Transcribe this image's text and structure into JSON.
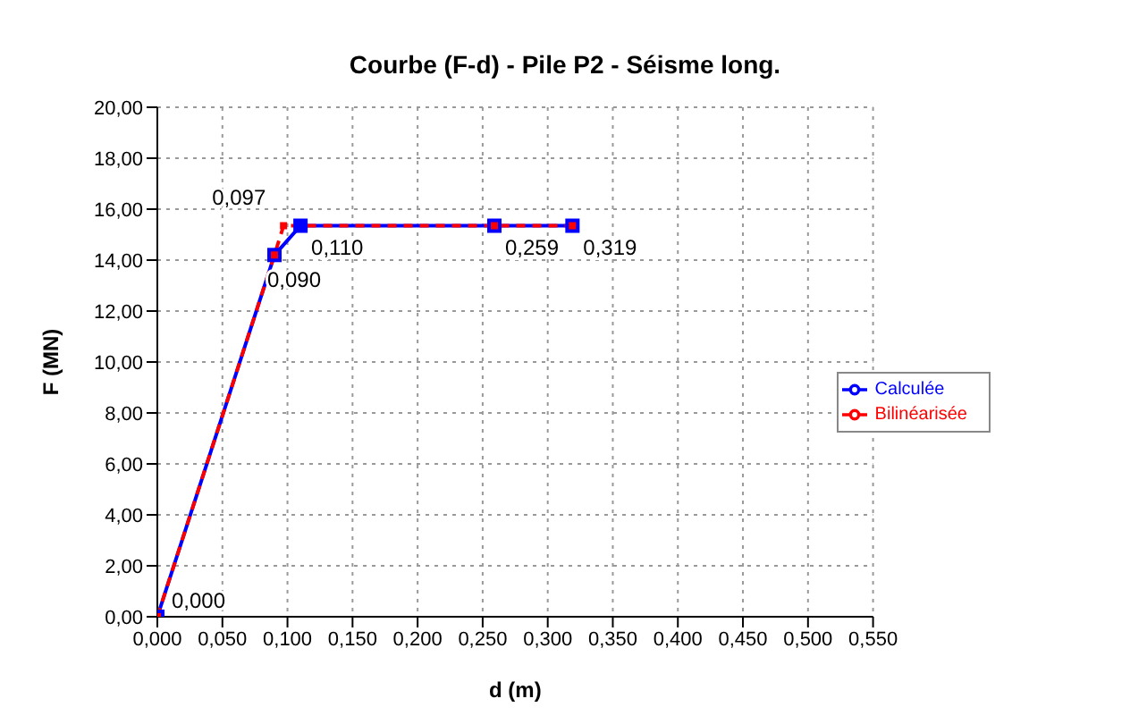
{
  "chart_data": {
    "type": "line",
    "title": "Courbe (F-d) - Pile P2 - Séisme long.",
    "xlabel": "d (m)",
    "ylabel": "F (MN)",
    "series": [
      {
        "name": "Calculée",
        "color": "#0000ff",
        "x": [
          0,
          0.09,
          0.11,
          0.259,
          0.319
        ],
        "values": [
          0,
          14.2,
          15.35,
          15.35,
          15.35
        ],
        "marker": "square",
        "line_style": "solid"
      },
      {
        "name": "Bilinéarisée",
        "color": "#ff0000",
        "x": [
          0,
          0.09,
          0.097,
          0.259,
          0.319
        ],
        "values": [
          0,
          14.2,
          15.35,
          15.35,
          15.35
        ],
        "marker": "square",
        "line_style": "dashed"
      }
    ],
    "annotations": [
      {
        "text": "0,000",
        "x": 0,
        "y": 0
      },
      {
        "text": "0,090",
        "x": 0.09,
        "y": 14.2
      },
      {
        "text": "0,097",
        "x": 0.097,
        "y": 15.35
      },
      {
        "text": "0,110",
        "x": 0.11,
        "y": 15.35
      },
      {
        "text": "0,259",
        "x": 0.259,
        "y": 15.35
      },
      {
        "text": "0,319",
        "x": 0.319,
        "y": 15.35
      }
    ],
    "xlim": [
      0,
      0.55
    ],
    "xticks": [
      {
        "value": 0,
        "label": "0,000"
      },
      {
        "value": 0.05,
        "label": "0,050"
      },
      {
        "value": 0.1,
        "label": "0,100"
      },
      {
        "value": 0.15,
        "label": "0,150"
      },
      {
        "value": 0.2,
        "label": "0,200"
      },
      {
        "value": 0.25,
        "label": "0,250"
      },
      {
        "value": 0.3,
        "label": "0,300"
      },
      {
        "value": 0.35,
        "label": "0,350"
      },
      {
        "value": 0.4,
        "label": "0,400"
      },
      {
        "value": 0.45,
        "label": "0,450"
      },
      {
        "value": 0.5,
        "label": "0,500"
      },
      {
        "value": 0.55,
        "label": "0,550"
      }
    ],
    "ylim": [
      0,
      20
    ],
    "yticks": [
      {
        "value": 0,
        "label": "0,00"
      },
      {
        "value": 2,
        "label": "2,00"
      },
      {
        "value": 4,
        "label": "4,00"
      },
      {
        "value": 6,
        "label": "6,00"
      },
      {
        "value": 8,
        "label": "8,00"
      },
      {
        "value": 10,
        "label": "10,00"
      },
      {
        "value": 12,
        "label": "12,00"
      },
      {
        "value": 14,
        "label": "14,00"
      },
      {
        "value": 16,
        "label": "16,00"
      },
      {
        "value": 18,
        "label": "18,00"
      },
      {
        "value": 20,
        "label": "20,00"
      }
    ],
    "grid": true,
    "legend": "right"
  }
}
